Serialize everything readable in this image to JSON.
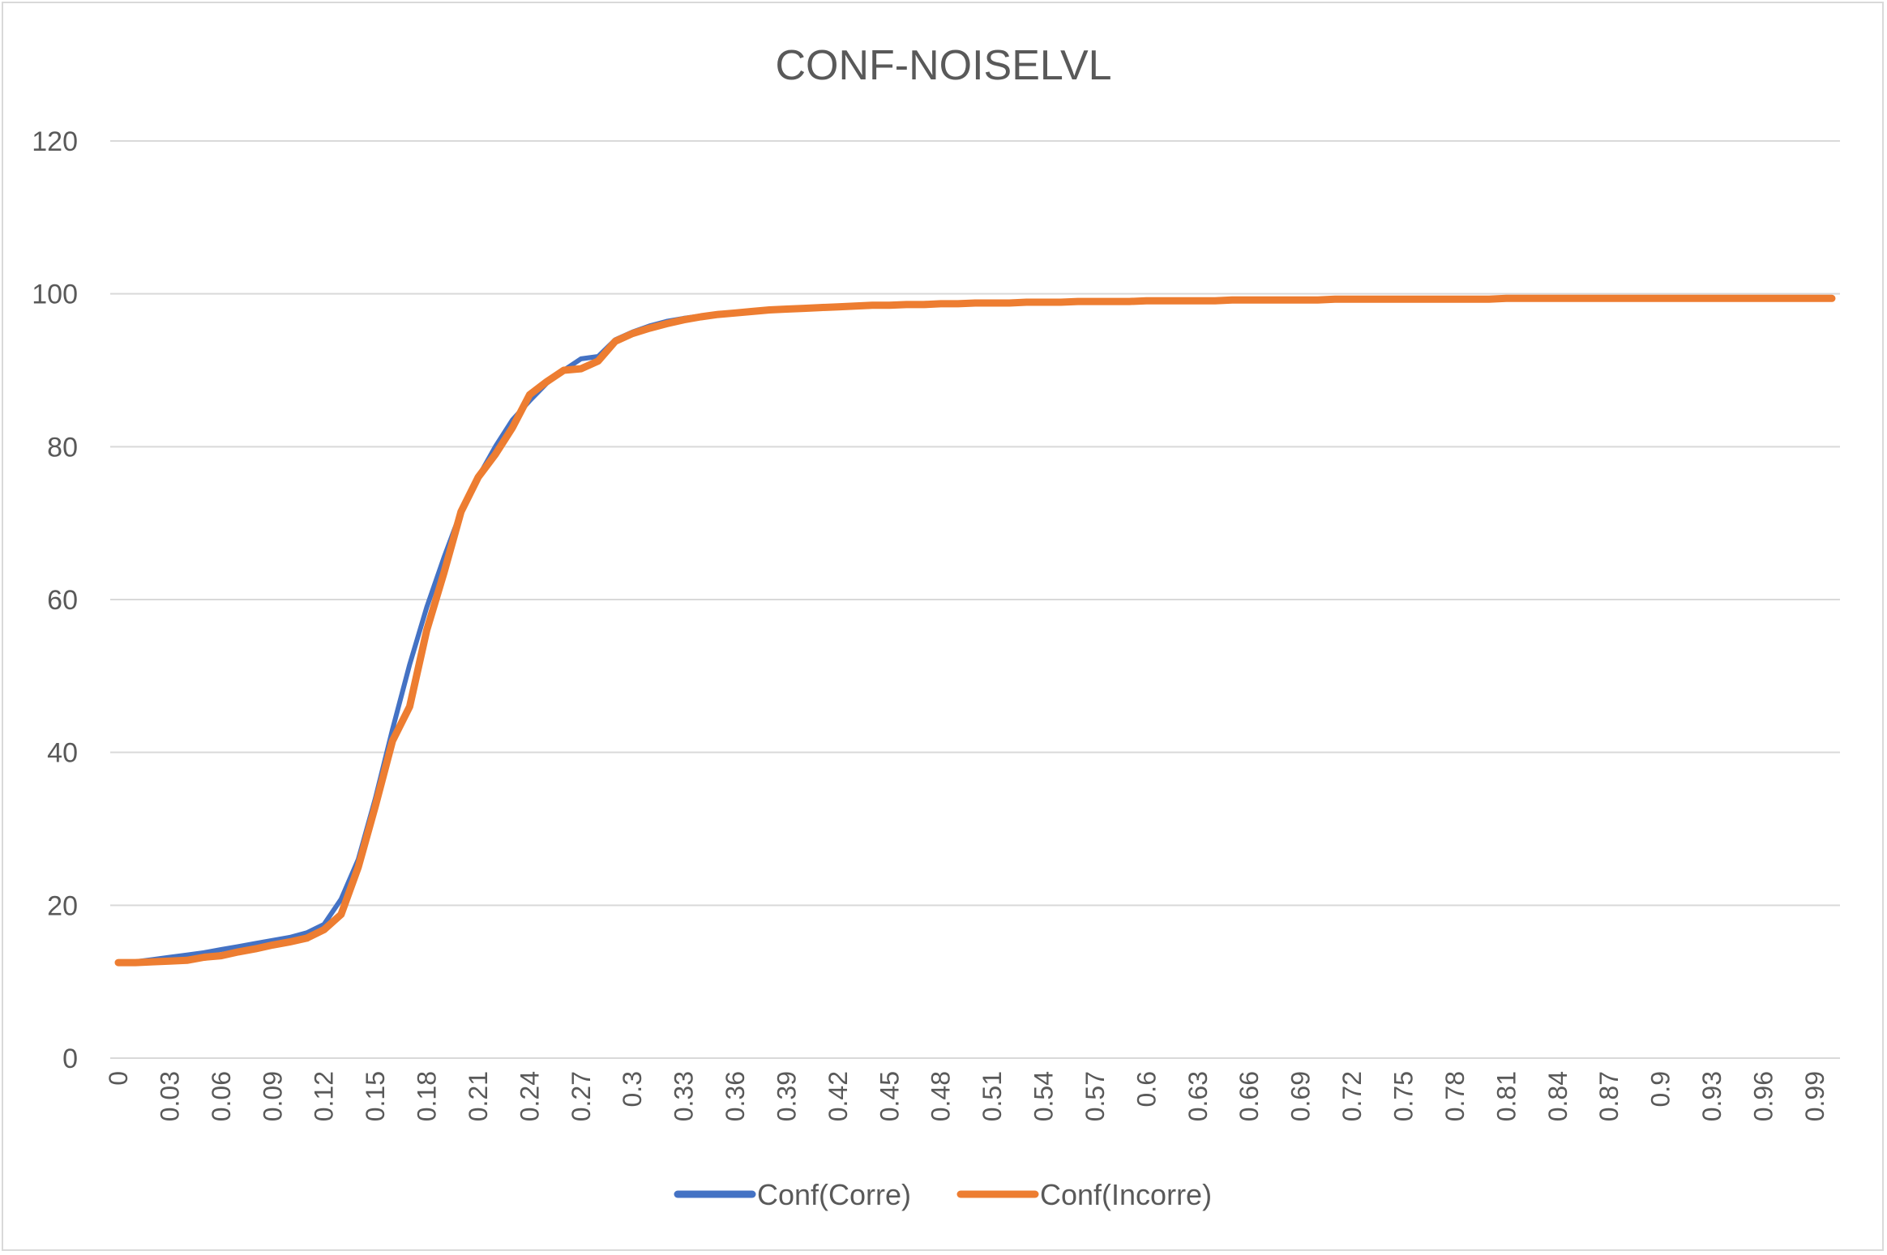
{
  "chart_data": {
    "type": "line",
    "title": "CONF-NOISELVL",
    "xlabel": "",
    "ylabel": "",
    "ylim": [
      0,
      120
    ],
    "yticks": [
      "0",
      "20",
      "40",
      "60",
      "80",
      "100",
      "120"
    ],
    "xtick_labels": [
      "0",
      "0.03",
      "0.06",
      "0.09",
      "0.12",
      "0.15",
      "0.18",
      "0.21",
      "0.24",
      "0.27",
      "0.3",
      "0.33",
      "0.36",
      "0.39",
      "0.42",
      "0.45",
      "0.48",
      "0.51",
      "0.54",
      "0.57",
      "0.6",
      "0.63",
      "0.66",
      "0.69",
      "0.72",
      "0.75",
      "0.78",
      "0.81",
      "0.84",
      "0.87",
      "0.9",
      "0.93",
      "0.96",
      "0.99"
    ],
    "grid": "horizontal",
    "legend_position": "bottom",
    "x": [
      0,
      0.01,
      0.02,
      0.03,
      0.04,
      0.05,
      0.06,
      0.07,
      0.08,
      0.09,
      0.1,
      0.11,
      0.12,
      0.13,
      0.14,
      0.15,
      0.16,
      0.17,
      0.18,
      0.19,
      0.2,
      0.21,
      0.22,
      0.23,
      0.24,
      0.25,
      0.26,
      0.27,
      0.28,
      0.29,
      0.3,
      0.31,
      0.32,
      0.33,
      0.34,
      0.35,
      0.36,
      0.37,
      0.38,
      0.39,
      0.4,
      0.41,
      0.42,
      0.43,
      0.44,
      0.45,
      0.46,
      0.47,
      0.48,
      0.49,
      0.5,
      0.51,
      0.52,
      0.53,
      0.54,
      0.55,
      0.56,
      0.57,
      0.58,
      0.59,
      0.6,
      0.61,
      0.62,
      0.63,
      0.64,
      0.65,
      0.66,
      0.67,
      0.68,
      0.69,
      0.7,
      0.71,
      0.72,
      0.73,
      0.74,
      0.75,
      0.76,
      0.77,
      0.78,
      0.79,
      0.8,
      0.81,
      0.82,
      0.83,
      0.84,
      0.85,
      0.86,
      0.87,
      0.88,
      0.89,
      0.9,
      0.91,
      0.92,
      0.93,
      0.94,
      0.95,
      0.96,
      0.97,
      0.98,
      0.99,
      1.0
    ],
    "series": [
      {
        "name": "Conf(Corre)",
        "color": "#4472C4",
        "values": [
          12.5,
          12.6,
          12.9,
          13.2,
          13.5,
          13.8,
          14.2,
          14.6,
          15.0,
          15.4,
          15.8,
          16.4,
          17.5,
          20.8,
          26.0,
          34.0,
          43.0,
          51.5,
          59.0,
          65.5,
          71.5,
          76.0,
          80.0,
          83.5,
          86.0,
          88.3,
          90.0,
          91.5,
          91.8,
          94.0,
          95.0,
          95.8,
          96.4,
          96.8,
          97.1,
          97.4,
          97.6,
          97.8,
          98.0,
          98.1,
          98.2,
          98.3,
          98.4,
          98.5,
          98.6,
          98.6,
          98.7,
          98.7,
          98.8,
          98.8,
          98.9,
          98.9,
          98.9,
          99.0,
          99.0,
          99.0,
          99.0,
          99.1,
          99.1,
          99.1,
          99.1,
          99.2,
          99.2,
          99.2,
          99.2,
          99.2,
          99.2,
          99.3,
          99.3,
          99.3,
          99.3,
          99.3,
          99.3,
          99.3,
          99.3,
          99.3,
          99.3,
          99.3,
          99.4,
          99.4,
          99.4,
          99.4,
          99.4,
          99.4,
          99.4,
          99.4,
          99.4,
          99.4,
          99.4,
          99.4,
          99.5,
          99.5,
          99.5,
          99.5,
          99.5,
          99.5,
          99.5,
          99.5,
          99.5,
          99.5,
          99.5
        ]
      },
      {
        "name": "Conf(Incorre)",
        "color": "#ED7D31",
        "values": [
          12.5,
          12.5,
          12.6,
          12.7,
          12.8,
          13.2,
          13.4,
          13.9,
          14.3,
          14.8,
          15.2,
          15.7,
          16.8,
          18.8,
          25.0,
          33.0,
          41.5,
          46.0,
          56.0,
          63.5,
          71.5,
          76.0,
          79.0,
          82.5,
          86.8,
          88.5,
          90.0,
          90.2,
          91.2,
          93.8,
          94.8,
          95.5,
          96.1,
          96.6,
          97.0,
          97.3,
          97.5,
          97.7,
          97.9,
          98.0,
          98.1,
          98.2,
          98.3,
          98.4,
          98.5,
          98.5,
          98.6,
          98.6,
          98.7,
          98.7,
          98.8,
          98.8,
          98.8,
          98.9,
          98.9,
          98.9,
          99.0,
          99.0,
          99.0,
          99.0,
          99.1,
          99.1,
          99.1,
          99.1,
          99.1,
          99.2,
          99.2,
          99.2,
          99.2,
          99.2,
          99.2,
          99.3,
          99.3,
          99.3,
          99.3,
          99.3,
          99.3,
          99.3,
          99.3,
          99.3,
          99.3,
          99.4,
          99.4,
          99.4,
          99.4,
          99.4,
          99.4,
          99.4,
          99.4,
          99.4,
          99.4,
          99.4,
          99.4,
          99.4,
          99.4,
          99.4,
          99.4,
          99.4,
          99.4,
          99.4,
          99.4
        ]
      }
    ]
  }
}
